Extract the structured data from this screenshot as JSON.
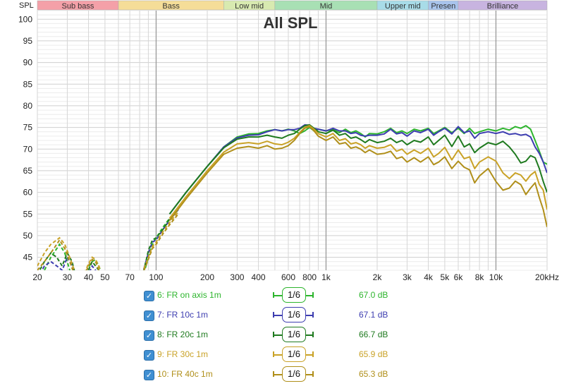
{
  "chart_data": {
    "type": "line",
    "title": "All SPL",
    "ylabel": "SPL",
    "xscale": "log",
    "xlim": [
      20,
      20000
    ],
    "ylim": [
      42,
      102
    ],
    "grid": true,
    "yticks": [
      45,
      50,
      55,
      60,
      65,
      70,
      75,
      80,
      85,
      90,
      95,
      100
    ],
    "xticks": [
      {
        "v": 20,
        "l": "20"
      },
      {
        "v": 30,
        "l": "30"
      },
      {
        "v": 40,
        "l": "40"
      },
      {
        "v": 50,
        "l": "50"
      },
      {
        "v": 70,
        "l": "70"
      },
      {
        "v": 100,
        "l": "100"
      },
      {
        "v": 200,
        "l": "200"
      },
      {
        "v": 300,
        "l": "300"
      },
      {
        "v": 400,
        "l": "400"
      },
      {
        "v": 600,
        "l": "600"
      },
      {
        "v": 800,
        "l": "800"
      },
      {
        "v": 1000,
        "l": "1k"
      },
      {
        "v": 2000,
        "l": "2k"
      },
      {
        "v": 3000,
        "l": "3k"
      },
      {
        "v": 4000,
        "l": "4k"
      },
      {
        "v": 5000,
        "l": "5k"
      },
      {
        "v": 6000,
        "l": "6k"
      },
      {
        "v": 8000,
        "l": "8k"
      },
      {
        "v": 10000,
        "l": "10k"
      },
      {
        "v": 20000,
        "l": "20kHz"
      }
    ],
    "bands": [
      {
        "name": "Sub bass",
        "from": 20,
        "to": 60,
        "color": "#f4a0a8"
      },
      {
        "name": "Bass",
        "from": 60,
        "to": 250,
        "color": "#f5dd98"
      },
      {
        "name": "Low mid",
        "from": 250,
        "to": 500,
        "color": "#d8eab0"
      },
      {
        "name": "Mid",
        "from": 500,
        "to": 2000,
        "color": "#a8e0b4"
      },
      {
        "name": "Upper mid",
        "from": 2000,
        "to": 4000,
        "color": "#a8dce8"
      },
      {
        "name": "Presen",
        "from": 4000,
        "to": 6000,
        "color": "#a8c4ec"
      },
      {
        "name": "Brilliance",
        "from": 6000,
        "to": 20000,
        "color": "#c8b4e0"
      }
    ],
    "series": [
      {
        "name": "6: FR on axis 1m",
        "color": "#2db52d",
        "smoothing": "1/6",
        "value": "67.0 dB",
        "lowx": [
          20,
          22,
          24,
          26,
          27,
          29,
          31,
          33,
          36,
          39,
          42,
          44,
          46,
          48,
          50
        ],
        "lowy": [
          40,
          42,
          45,
          47,
          48,
          46,
          42,
          38,
          40,
          42,
          44,
          44.5,
          43,
          41,
          40
        ],
        "midx": [
          83,
          90,
          95,
          100,
          110,
          120,
          135
        ],
        "midy": [
          40,
          45,
          48,
          49.5,
          52,
          54,
          56
        ],
        "x": [
          120,
          150,
          200,
          250,
          300,
          350,
          400,
          450,
          500,
          550,
          600,
          650,
          700,
          750,
          800,
          850,
          900,
          1000,
          1100,
          1200,
          1300,
          1400,
          1500,
          1600,
          1700,
          1800,
          2000,
          2200,
          2400,
          2600,
          2800,
          3000,
          3300,
          3600,
          4000,
          4300,
          4600,
          5000,
          5500,
          6000,
          6500,
          7000,
          7500,
          8000,
          9000,
          10000,
          11000,
          12000,
          13000,
          14000,
          15000,
          16000,
          17000,
          18000,
          19000,
          20000
        ],
        "y": [
          55,
          60,
          66,
          70.5,
          72.8,
          73.5,
          73.6,
          74.2,
          74.5,
          74.2,
          74.6,
          74.2,
          73.6,
          74.2,
          75,
          74.2,
          74.6,
          74.2,
          74.5,
          73.8,
          74.6,
          73.8,
          74.2,
          73.6,
          72.8,
          73.6,
          73.5,
          74,
          74.8,
          73.8,
          74.2,
          73.6,
          74.6,
          74.2,
          74.8,
          73.6,
          74.2,
          75,
          73.8,
          74.8,
          73.6,
          74.8,
          73.6,
          74,
          74.6,
          74.2,
          74.8,
          74.4,
          75.2,
          74.8,
          75.4,
          74.6,
          72,
          69.5,
          67,
          66.5
        ]
      },
      {
        "name": "7: FR 10c 1m",
        "color": "#3d3db0",
        "smoothing": "1/6",
        "value": "67.1 dB",
        "lowx": [
          20,
          22,
          24,
          26,
          28,
          30,
          32,
          34,
          37,
          40,
          42,
          44,
          46,
          48,
          50
        ],
        "lowy": [
          40,
          43,
          44,
          43,
          42,
          45,
          43,
          39,
          40,
          41,
          43,
          42,
          41,
          40,
          39
        ],
        "midx": [
          83,
          90,
          95,
          100,
          110,
          120,
          135
        ],
        "midy": [
          41,
          46,
          48.5,
          49,
          51.5,
          53.5,
          56
        ],
        "x": [
          120,
          150,
          200,
          250,
          300,
          350,
          400,
          450,
          500,
          550,
          600,
          650,
          700,
          750,
          800,
          850,
          900,
          1000,
          1100,
          1200,
          1300,
          1400,
          1500,
          1600,
          1700,
          1800,
          2000,
          2200,
          2400,
          2600,
          2800,
          3000,
          3300,
          3600,
          4000,
          4300,
          4600,
          5000,
          5500,
          6000,
          6500,
          7000,
          7500,
          8000,
          9000,
          10000,
          11000,
          12000,
          13000,
          14000,
          15000,
          16000,
          17000,
          18000,
          19000,
          20000
        ],
        "y": [
          55,
          60,
          66,
          70.5,
          72.6,
          73.2,
          73.3,
          74,
          74.5,
          74.2,
          74.5,
          74.5,
          74.8,
          75.6,
          75.5,
          74.8,
          74.6,
          74.2,
          74.8,
          74.2,
          74.2,
          73.6,
          73.8,
          73.2,
          73,
          73.2,
          73.2,
          73.5,
          74.6,
          73.5,
          73.8,
          73,
          74.2,
          73.8,
          74.6,
          73.2,
          74,
          74.8,
          73.5,
          75.2,
          73.8,
          74.2,
          72.5,
          73.6,
          74,
          73.6,
          74,
          73.4,
          73.6,
          73.2,
          73.4,
          72.8,
          70.5,
          69,
          67,
          64.5
        ]
      },
      {
        "name": "8: FR 20c 1m",
        "color": "#1f7a1f",
        "smoothing": "1/6",
        "value": "66.7 dB",
        "lowx": [
          20,
          22,
          24,
          26,
          28,
          30,
          32,
          34,
          37,
          40,
          42,
          44,
          46,
          48,
          50
        ],
        "lowy": [
          41,
          44,
          46,
          45,
          43,
          46,
          44,
          40,
          40,
          42,
          44,
          43,
          42,
          40,
          39
        ],
        "midx": [
          83,
          90,
          95,
          100,
          110,
          120,
          135
        ],
        "midy": [
          40.5,
          46.5,
          49,
          49.5,
          51.5,
          53.8,
          56
        ],
        "x": [
          120,
          150,
          200,
          250,
          300,
          350,
          400,
          450,
          500,
          550,
          600,
          650,
          700,
          750,
          800,
          850,
          900,
          1000,
          1100,
          1200,
          1300,
          1400,
          1500,
          1600,
          1700,
          1800,
          2000,
          2200,
          2400,
          2600,
          2800,
          3000,
          3300,
          3600,
          4000,
          4300,
          4600,
          5000,
          5500,
          6000,
          6500,
          7000,
          7500,
          8000,
          9000,
          10000,
          11000,
          12000,
          13000,
          14000,
          15000,
          16000,
          17000,
          18000,
          19000,
          20000
        ],
        "y": [
          55,
          60,
          66,
          70.3,
          72.3,
          72.8,
          72.8,
          73.2,
          72.8,
          72.5,
          73.2,
          73.6,
          74.6,
          75.4,
          75.6,
          74.8,
          74,
          73.6,
          74.4,
          73.2,
          73.6,
          72.5,
          72.8,
          72.2,
          71.5,
          72.2,
          71.5,
          71.8,
          72.5,
          71.5,
          72,
          71,
          72,
          71.6,
          72.8,
          71,
          72,
          73.2,
          70.6,
          73,
          70.5,
          71.2,
          69.2,
          70.2,
          71.5,
          71,
          71.8,
          70.5,
          68.8,
          66.8,
          67.2,
          68.5,
          68,
          65.5,
          62.5,
          60
        ]
      },
      {
        "name": "9: FR 30c 1m",
        "color": "#c9a227",
        "smoothing": "1/6",
        "value": "65.9 dB",
        "lowx": [
          20,
          22,
          24,
          26,
          27,
          29,
          31,
          33,
          35,
          38,
          40,
          42,
          44,
          46,
          48,
          50
        ],
        "lowy": [
          43,
          46,
          48,
          49,
          49.5,
          48,
          45,
          42,
          40,
          41.5,
          43.5,
          45,
          44.5,
          43,
          41,
          40
        ],
        "midx": [
          80,
          88,
          95,
          100,
          110,
          120,
          135
        ],
        "midy": [
          40,
          44,
          47.5,
          48.5,
          51,
          53,
          55.5
        ],
        "x": [
          120,
          150,
          200,
          250,
          300,
          350,
          400,
          450,
          500,
          550,
          600,
          650,
          700,
          750,
          800,
          850,
          900,
          1000,
          1100,
          1200,
          1300,
          1400,
          1500,
          1600,
          1700,
          1800,
          2000,
          2200,
          2400,
          2600,
          2800,
          3000,
          3300,
          3600,
          4000,
          4300,
          4600,
          5000,
          5500,
          6000,
          6500,
          7000,
          7500,
          8000,
          9000,
          10000,
          11000,
          12000,
          13000,
          14000,
          15000,
          16000,
          17000,
          18000,
          19000,
          20000
        ],
        "y": [
          54,
          59,
          65,
          69.3,
          71.2,
          71.5,
          71.2,
          71.8,
          71.2,
          71,
          71.6,
          72.5,
          73.8,
          75,
          75.4,
          74.6,
          73.6,
          72.8,
          73.6,
          72,
          72.4,
          71.2,
          71.5,
          71,
          70.2,
          70.8,
          70.2,
          70.4,
          71,
          69.5,
          70,
          68.8,
          69.8,
          69,
          70.2,
          68.2,
          69,
          70.4,
          67.5,
          69.8,
          67.8,
          68.2,
          65.5,
          67,
          68.2,
          67.2,
          64.5,
          63.2,
          64.5,
          64,
          62.6,
          64,
          64.8,
          61.8,
          60.5,
          56
        ]
      },
      {
        "name": "10: FR 40c 1m",
        "color": "#b08f1a",
        "smoothing": "1/6",
        "value": "65.3 dB",
        "lowx": [
          20,
          22,
          24,
          26,
          27,
          29,
          31,
          33,
          35,
          38,
          40,
          42,
          44,
          46,
          48,
          50
        ],
        "lowy": [
          42,
          44,
          46,
          48,
          49,
          47,
          44,
          41,
          39.5,
          41,
          43,
          44.5,
          44,
          42,
          40.5,
          39.5
        ],
        "midx": [
          80,
          88,
          95,
          100,
          110,
          120,
          135
        ],
        "midy": [
          39.5,
          43.5,
          47,
          48,
          50.5,
          52.5,
          55
        ],
        "x": [
          120,
          150,
          200,
          250,
          300,
          350,
          400,
          450,
          500,
          550,
          600,
          650,
          700,
          750,
          800,
          850,
          900,
          1000,
          1100,
          1200,
          1300,
          1400,
          1500,
          1600,
          1700,
          1800,
          2000,
          2200,
          2400,
          2600,
          2800,
          3000,
          3300,
          3600,
          4000,
          4300,
          4600,
          5000,
          5500,
          6000,
          6500,
          7000,
          7500,
          8000,
          9000,
          10000,
          11000,
          12000,
          13000,
          14000,
          15000,
          16000,
          17000,
          18000,
          19000,
          20000
        ],
        "y": [
          53.5,
          58.5,
          64.5,
          68.8,
          70.2,
          70.6,
          70.2,
          70.8,
          70,
          70.2,
          70.8,
          72,
          73.6,
          74.8,
          75.2,
          74.2,
          73,
          72,
          72.8,
          71.2,
          71.5,
          70.2,
          70.5,
          70,
          69.2,
          69.8,
          68.8,
          69,
          69.5,
          67.8,
          68.2,
          67,
          68,
          67,
          68.2,
          66.4,
          67,
          68.2,
          65.5,
          67.2,
          65.8,
          65.2,
          62.2,
          63.8,
          65.5,
          62.5,
          60.5,
          61,
          62.6,
          61.8,
          59.5,
          61,
          62.2,
          58.8,
          56,
          52
        ]
      }
    ]
  }
}
